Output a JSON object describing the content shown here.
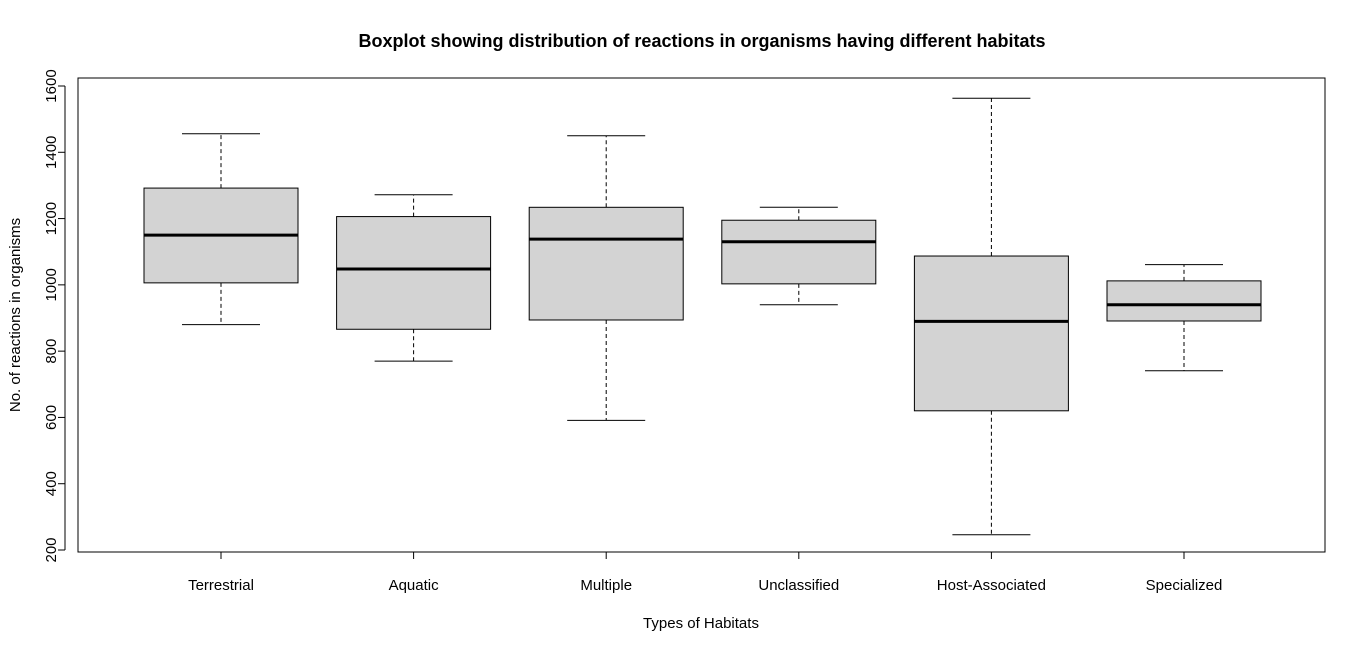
{
  "chart_data": {
    "type": "boxplot",
    "title": "Boxplot showing distribution of reactions in organisms having different habitats",
    "xlabel": "Types of Habitats",
    "ylabel": "No. of reactions in organisms",
    "ylim": [
      200,
      1620
    ],
    "yticks": [
      200,
      400,
      600,
      800,
      1000,
      1200,
      1400,
      1600
    ],
    "ytick_labels": [
      "200",
      "400",
      "600",
      "800",
      "1000",
      "1200",
      "1400",
      "1600"
    ],
    "categories": [
      "Terrestrial",
      "Aquatic",
      "Multiple",
      "Unclassified",
      "Host-Associated",
      "Specialized"
    ],
    "boxes": [
      {
        "name": "Terrestrial",
        "min": 880,
        "q1": 1006,
        "median": 1150,
        "q3": 1292,
        "max": 1456
      },
      {
        "name": "Aquatic",
        "min": 770,
        "q1": 866,
        "median": 1048,
        "q3": 1206,
        "max": 1272
      },
      {
        "name": "Multiple",
        "min": 591,
        "q1": 894,
        "median": 1138,
        "q3": 1234,
        "max": 1450
      },
      {
        "name": "Unclassified",
        "min": 940,
        "q1": 1003,
        "median": 1130,
        "q3": 1195,
        "max": 1234
      },
      {
        "name": "Host-Associated",
        "min": 246,
        "q1": 620,
        "median": 890,
        "q3": 1087,
        "max": 1563
      },
      {
        "name": "Specialized",
        "min": 741,
        "q1": 891,
        "median": 940,
        "q3": 1012,
        "max": 1061
      }
    ],
    "box_fill": "#d3d3d3",
    "grid": false
  }
}
